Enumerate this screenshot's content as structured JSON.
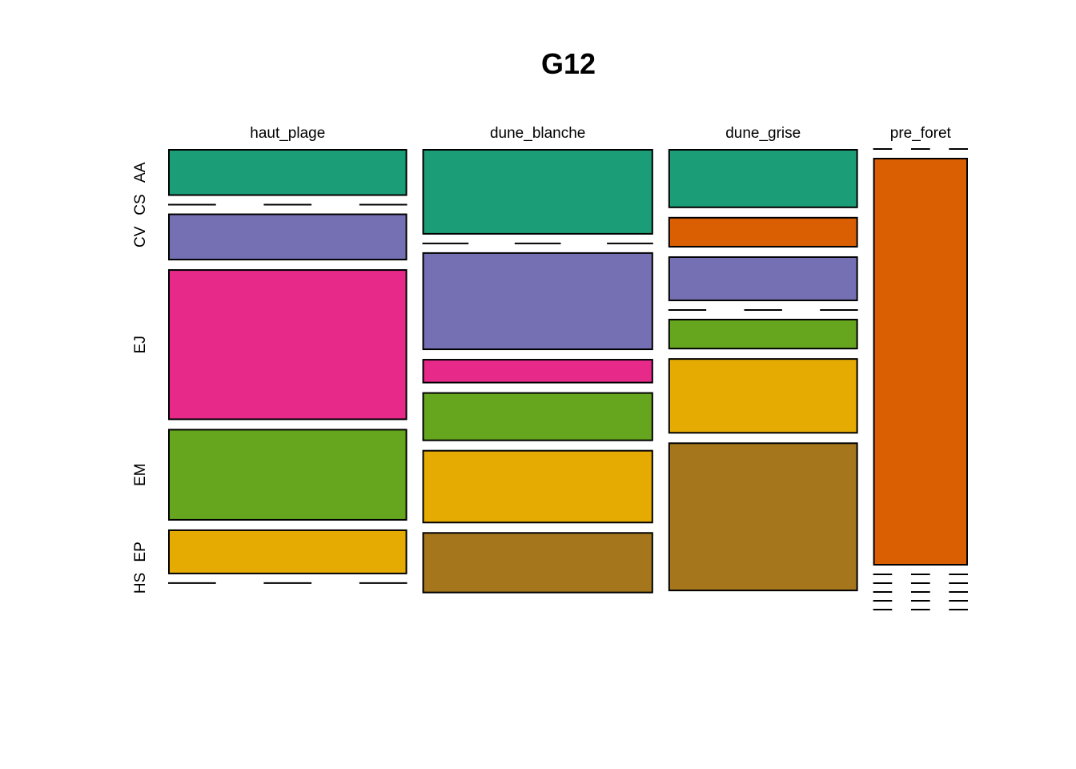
{
  "chart_data": {
    "type": "mosaic",
    "title": "G12",
    "columns": [
      "haut_plage",
      "dune_blanche",
      "dune_grise",
      "pre_foret"
    ],
    "rows": [
      "AA",
      "CS",
      "CV",
      "EJ",
      "EM",
      "EP",
      "HS"
    ],
    "row_colors": {
      "AA": "#1B9E77",
      "CS": "#D95F02",
      "CV": "#7570B3",
      "EJ": "#E7298A",
      "EM": "#66A61E",
      "EP": "#E6AB02",
      "HS": "#A6761D"
    },
    "column_widths": [
      0.29,
      0.28,
      0.23,
      0.115
    ],
    "proportions": [
      [
        0.115,
        0.0,
        0.115,
        0.37,
        0.225,
        0.11,
        0.0
      ],
      [
        0.21,
        0.0,
        0.24,
        0.06,
        0.12,
        0.18,
        0.15
      ],
      [
        0.145,
        0.075,
        0.11,
        0.0,
        0.075,
        0.185,
        0.365
      ],
      [
        0.0,
        1.0,
        0.0,
        0.0,
        0.0,
        0.0,
        0.0
      ]
    ]
  }
}
